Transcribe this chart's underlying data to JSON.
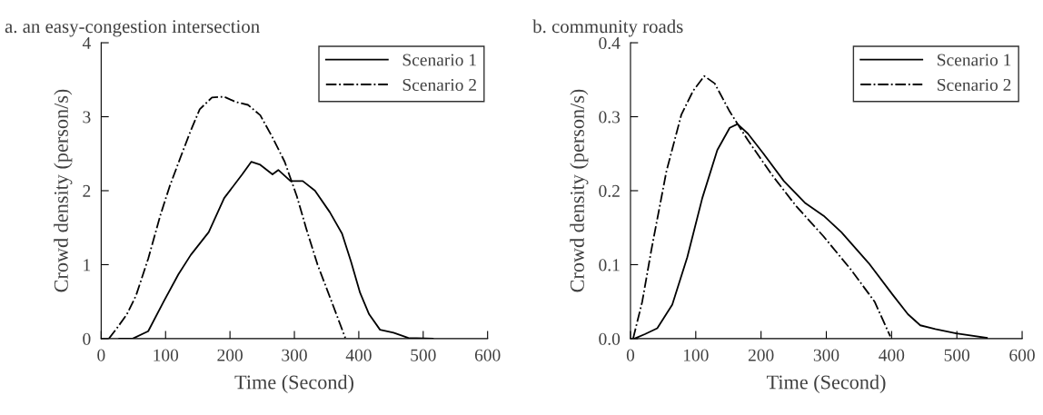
{
  "chart_data": [
    {
      "type": "line",
      "title": "a. an easy-congestion intersection",
      "xlabel": "Time (Second)",
      "ylabel": "Crowd density (person/s)",
      "xlim": [
        0,
        600
      ],
      "ylim": [
        0,
        4
      ],
      "xticks": [
        0,
        100,
        200,
        300,
        400,
        500,
        600
      ],
      "yticks": [
        0,
        1,
        2,
        3,
        4
      ],
      "legend": "top right",
      "grid": false,
      "series": [
        {
          "name": "Scenario 1",
          "color": "#000000",
          "line_style": "solid",
          "x": [
            28,
            49,
            73,
            97,
            120,
            139,
            167,
            191,
            219,
            233,
            247,
            266,
            275,
            294,
            313,
            332,
            355,
            374,
            388,
            402,
            416,
            433,
            454,
            477,
            515
          ],
          "values": [
            0,
            0,
            0.1,
            0.5,
            0.87,
            1.13,
            1.44,
            1.9,
            2.22,
            2.39,
            2.35,
            2.22,
            2.28,
            2.13,
            2.13,
            2.0,
            1.71,
            1.42,
            1.04,
            0.62,
            0.33,
            0.12,
            0.08,
            0.01,
            0
          ]
        },
        {
          "name": "Scenario 2",
          "color": "#000000",
          "line_style": "dashdot",
          "x": [
            12,
            26,
            40,
            54,
            73,
            92,
            106,
            124,
            139,
            153,
            172,
            191,
            209,
            228,
            247,
            266,
            285,
            304,
            318,
            336,
            360,
            379
          ],
          "values": [
            0,
            0.16,
            0.33,
            0.58,
            1.08,
            1.67,
            2.05,
            2.47,
            2.81,
            3.1,
            3.26,
            3.27,
            3.2,
            3.16,
            3.02,
            2.72,
            2.39,
            1.92,
            1.5,
            1.0,
            0.45,
            0.01
          ]
        }
      ]
    },
    {
      "type": "line",
      "title": "b. community roads",
      "xlabel": "Time (Second)",
      "ylabel": "Crowd density (person/s)",
      "xlim": [
        0,
        600
      ],
      "ylim": [
        0,
        0.4
      ],
      "xticks": [
        0,
        100,
        200,
        300,
        400,
        500,
        600
      ],
      "yticks": [
        {
          "value": 0,
          "label": "0.0"
        },
        0.1,
        0.2,
        0.3,
        0.4
      ],
      "legend": "top right",
      "grid": false,
      "series": [
        {
          "name": "Scenario 1",
          "color": "#000000",
          "line_style": "solid",
          "x": [
            6,
            22,
            41,
            64,
            87,
            110,
            133,
            152,
            164,
            180,
            203,
            235,
            268,
            296,
            323,
            365,
            402,
            425,
            444,
            467,
            499,
            546
          ],
          "values": [
            0,
            0.006,
            0.014,
            0.046,
            0.11,
            0.19,
            0.255,
            0.285,
            0.29,
            0.277,
            0.251,
            0.213,
            0.183,
            0.166,
            0.144,
            0.102,
            0.059,
            0.033,
            0.018,
            0.013,
            0.007,
            0.001
          ]
        },
        {
          "name": "Scenario 2",
          "color": "#000000",
          "line_style": "dashdot",
          "x": [
            4,
            18,
            32,
            55,
            78,
            96,
            113,
            129,
            152,
            180,
            217,
            254,
            296,
            338,
            374,
            398
          ],
          "values": [
            0,
            0.05,
            0.12,
            0.226,
            0.303,
            0.335,
            0.355,
            0.345,
            0.307,
            0.268,
            0.221,
            0.179,
            0.138,
            0.093,
            0.05,
            0.003
          ]
        }
      ]
    }
  ]
}
